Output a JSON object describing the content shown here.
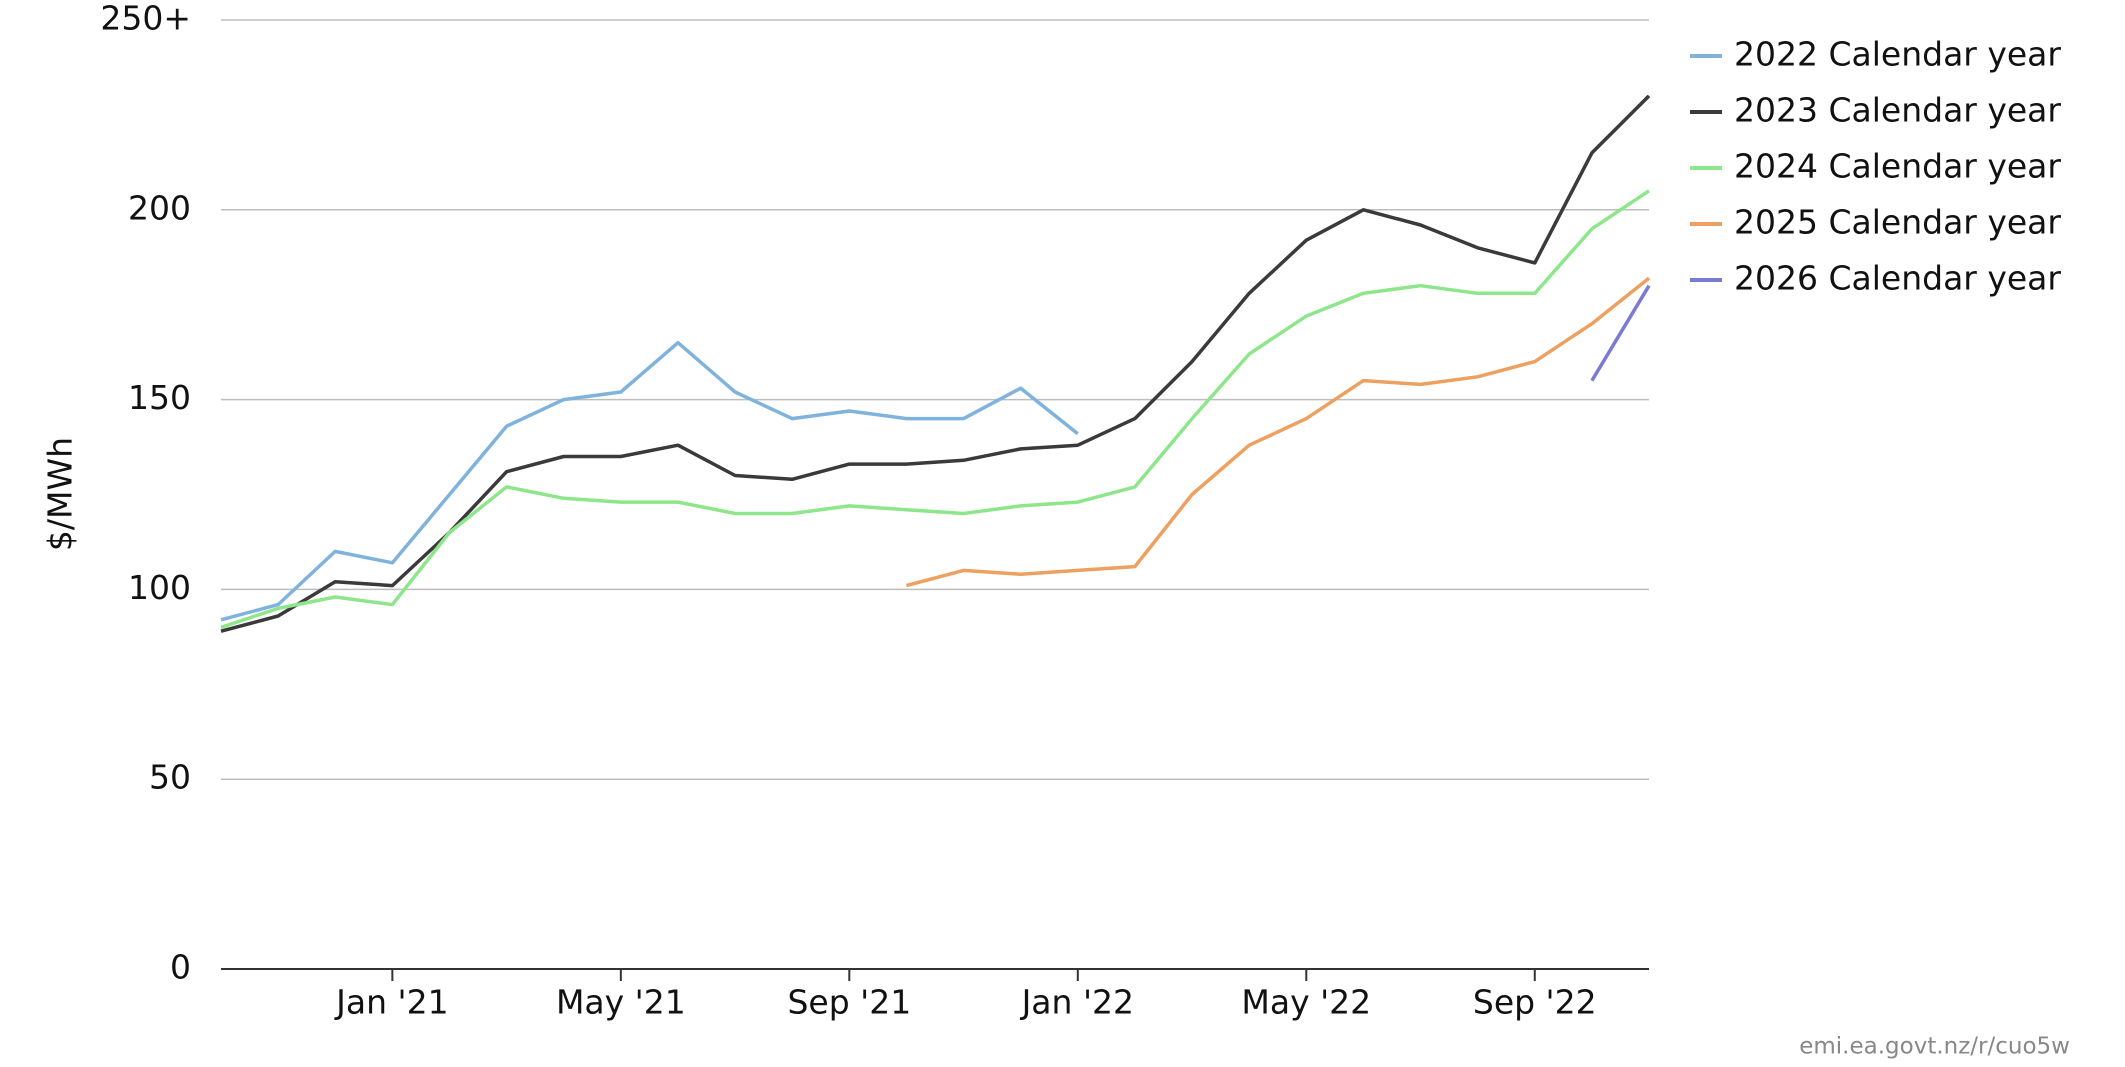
{
  "chart_data": {
    "type": "line",
    "y_label": "$/MWh",
    "source": "emi.ea.govt.nz/r/cuo5w",
    "x": [
      "2020-10",
      "2020-11",
      "2020-12",
      "2021-01",
      "2021-02",
      "2021-03",
      "2021-04",
      "2021-05",
      "2021-06",
      "2021-07",
      "2021-08",
      "2021-09",
      "2021-10",
      "2021-11",
      "2021-12",
      "2022-01",
      "2022-02",
      "2022-03",
      "2022-04",
      "2022-05",
      "2022-06",
      "2022-07",
      "2022-08",
      "2022-09",
      "2022-10",
      "2022-11"
    ],
    "xlim": [
      "2020-10",
      "2022-11"
    ],
    "xticks": [
      {
        "value": "2021-01",
        "label": "Jan '21"
      },
      {
        "value": "2021-05",
        "label": "May '21"
      },
      {
        "value": "2021-09",
        "label": "Sep '21"
      },
      {
        "value": "2022-01",
        "label": "Jan '22"
      },
      {
        "value": "2022-05",
        "label": "May '22"
      },
      {
        "value": "2022-09",
        "label": "Sep '22"
      }
    ],
    "ylim": [
      0,
      250
    ],
    "yticks": [
      0,
      50,
      100,
      150,
      200,
      {
        "value": 250,
        "label": "250+"
      }
    ],
    "grid": true,
    "legend": "right",
    "series": [
      {
        "name": "2022 Calendar year",
        "color": "#7fb2dd",
        "values": [
          92,
          96,
          110,
          107,
          125,
          143,
          150,
          152,
          165,
          152,
          145,
          147,
          145,
          145,
          153,
          141,
          null,
          null,
          null,
          null,
          null,
          null,
          null,
          null,
          null,
          null
        ]
      },
      {
        "name": "2023 Calendar year",
        "color": "#3a3a3a",
        "values": [
          89,
          93,
          102,
          101,
          115,
          131,
          135,
          135,
          138,
          130,
          129,
          133,
          133,
          134,
          137,
          138,
          145,
          160,
          178,
          192,
          200,
          196,
          190,
          186,
          215,
          230
        ]
      },
      {
        "name": "2024 Calendar year",
        "color": "#8ee68a",
        "values": [
          90,
          95,
          98,
          96,
          115,
          127,
          124,
          123,
          123,
          120,
          120,
          122,
          121,
          120,
          122,
          123,
          127,
          145,
          162,
          172,
          178,
          180,
          178,
          178,
          195,
          205
        ]
      },
      {
        "name": "2025 Calendar year",
        "color": "#eda060",
        "values": [
          null,
          null,
          null,
          null,
          null,
          null,
          null,
          null,
          null,
          null,
          null,
          null,
          101,
          105,
          104,
          105,
          106,
          125,
          138,
          145,
          155,
          154,
          156,
          160,
          170,
          182
        ]
      },
      {
        "name": "2026 Calendar year",
        "color": "#7a7ad2",
        "values": [
          null,
          null,
          null,
          null,
          null,
          null,
          null,
          null,
          null,
          null,
          null,
          null,
          null,
          null,
          null,
          null,
          null,
          null,
          null,
          null,
          null,
          null,
          null,
          null,
          155,
          180
        ]
      }
    ]
  }
}
